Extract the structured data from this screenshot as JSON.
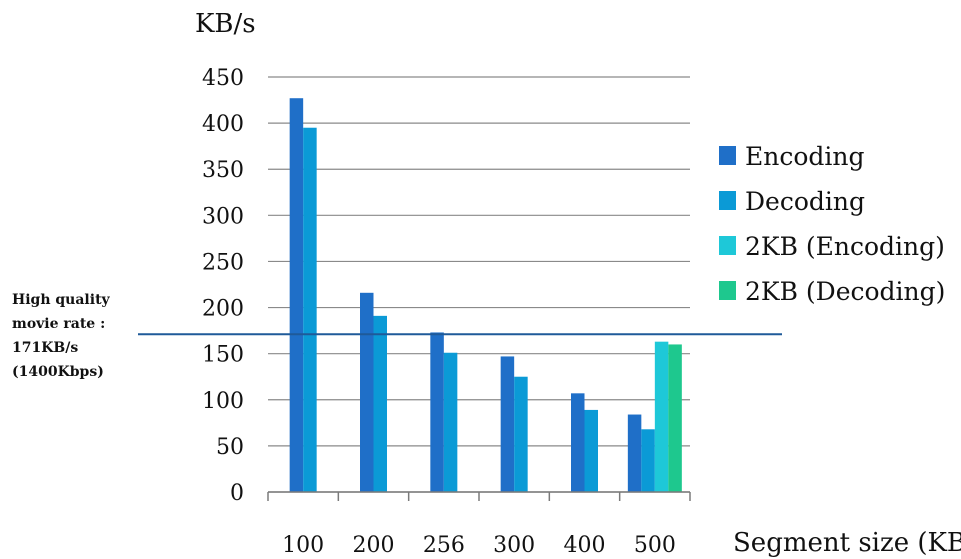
{
  "chart_data": {
    "type": "bar",
    "ylabel": "KB/s",
    "xlabel": "Segment size (KB)",
    "ylim": [
      0,
      450
    ],
    "yticks": [
      0,
      50,
      100,
      150,
      200,
      250,
      300,
      350,
      400,
      450
    ],
    "categories": [
      "100",
      "200",
      "256",
      "300",
      "400",
      "500"
    ],
    "grid": true,
    "legend_position": "right",
    "series": [
      {
        "name": "Encoding",
        "color": "#1f6fc8",
        "values": [
          427,
          216,
          173,
          147,
          107,
          84
        ]
      },
      {
        "name": "Decoding",
        "color": "#0b9ad6",
        "values": [
          395,
          191,
          151,
          125,
          89,
          68
        ]
      },
      {
        "name": "2KB (Encoding)",
        "color": "#1ec8d8",
        "values": [
          null,
          null,
          null,
          null,
          null,
          163
        ]
      },
      {
        "name": "2KB (Decoding)",
        "color": "#1ec88e",
        "values": [
          null,
          null,
          null,
          null,
          null,
          160
        ]
      }
    ],
    "reference_line": {
      "value": 171,
      "color": "#1f5a99",
      "label_lines": [
        "High quality",
        "movie rate :",
        "171KB/s",
        "(1400Kbps)"
      ]
    }
  }
}
